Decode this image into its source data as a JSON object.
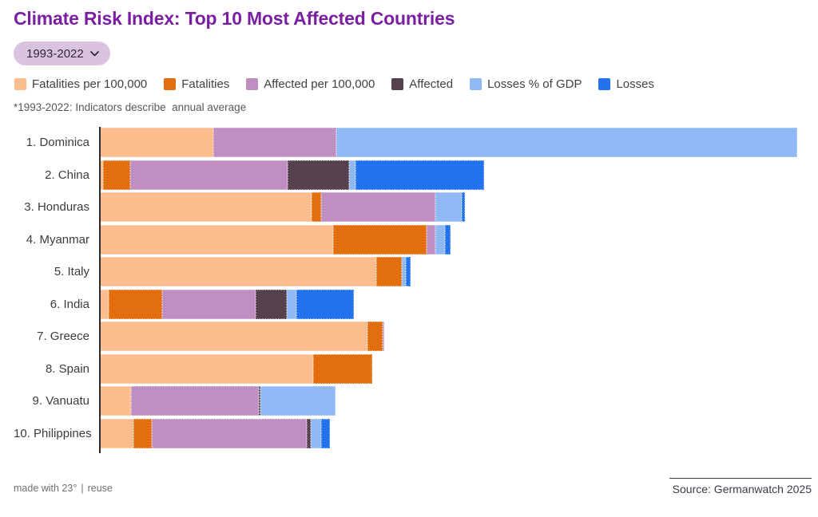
{
  "header": {
    "title": "Climate Risk Index: Top 10 Most Affected Countries",
    "period_selector": {
      "label": "1993-2022"
    },
    "note": "*1993-2022: Indicators describe  annual average"
  },
  "colors": {
    "title": "#7B1FA2",
    "pill_bg": "#D9C3E1",
    "pill_text": "#33253D",
    "axis": "#2B2B2B"
  },
  "chart_data": {
    "type": "bar",
    "orientation": "horizontal",
    "stacked": true,
    "grid": false,
    "legend_position": "top",
    "units": "relative stacked length, percent of plot width",
    "xlim": [
      0,
      100
    ],
    "categories": [
      "1. Dominica",
      "2. China",
      "3. Honduras",
      "4. Myanmar",
      "5. Italy",
      "6. India",
      "7. Greece",
      "8. Spain",
      "9. Vanuatu",
      "10. Philippines"
    ],
    "series": [
      {
        "name": "Fatalities per 100,000",
        "color": "#FBBD8D",
        "values": [
          16.4,
          0.6,
          30.4,
          33.5,
          39.7,
          1.4,
          38.4,
          30.7,
          4.6,
          4.9
        ]
      },
      {
        "name": "Fatalities",
        "color": "#E26E0E",
        "values": [
          0,
          3.9,
          1.4,
          13.4,
          3.7,
          7.6,
          2.2,
          8.4,
          0,
          2.6
        ]
      },
      {
        "name": "Affected per 100,000",
        "color": "#C08FC2",
        "values": [
          17.6,
          22.5,
          16.4,
          1.3,
          0,
          13.4,
          0.3,
          0,
          18.3,
          22.2
        ]
      },
      {
        "name": "Affected",
        "color": "#56414F",
        "values": [
          0,
          8.8,
          0,
          0,
          0,
          4.5,
          0,
          0,
          0.2,
          0.6
        ]
      },
      {
        "name": "Losses % of GDP",
        "color": "#8FB8F5",
        "values": [
          66.0,
          0.9,
          3.7,
          1.4,
          0.5,
          1.4,
          0,
          0,
          10.8,
          1.5
        ]
      },
      {
        "name": "Losses",
        "color": "#2372F0",
        "values": [
          0,
          18.5,
          0.5,
          0.7,
          0.7,
          8.2,
          0,
          0,
          0,
          1.3
        ]
      }
    ]
  },
  "footer": {
    "made_with": "made with 23°",
    "divider": "|",
    "reuse": "reuse",
    "source": "Source: Germanwatch 2025"
  }
}
